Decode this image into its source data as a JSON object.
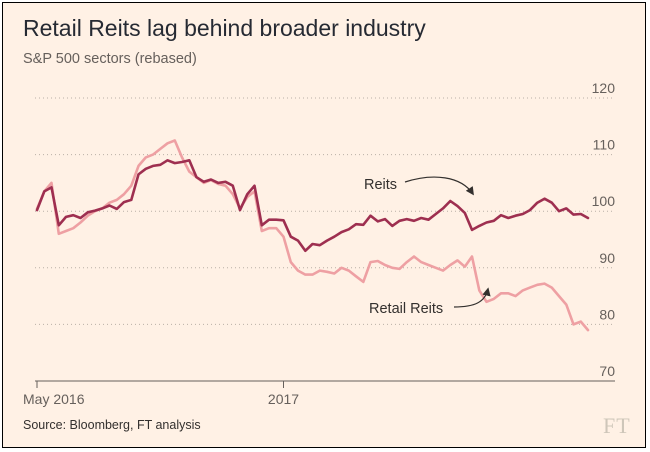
{
  "title": "Retail Reits lag behind broader industry",
  "subtitle": "S&P 500 sectors (rebased)",
  "source": "Source: Bloomberg, FT analysis",
  "logo": "FT",
  "chart_data": {
    "type": "line",
    "title": "Retail Reits lag behind broader industry",
    "subtitle": "S&P 500 sectors (rebased)",
    "xlabel": "",
    "ylabel": "",
    "ylim": [
      70,
      120
    ],
    "xlim": [
      0,
      76
    ],
    "x_unit": "weeks since May 2016 start",
    "x_ticks": [
      {
        "label": "May 2016",
        "x": 0
      },
      {
        "label": "2017",
        "x": 34
      }
    ],
    "y_ticks": [
      70,
      80,
      90,
      100,
      110,
      120
    ],
    "y_tick_labels": [
      "70",
      "80",
      "90",
      "100",
      "110",
      "120"
    ],
    "grid": "horizontal dotted",
    "annotations": [
      {
        "text": "Reits",
        "series": "Reits"
      },
      {
        "text": "Retail Reits",
        "series": "Retail Reits"
      }
    ],
    "series": [
      {
        "name": "Reits",
        "color": "#9e2f50",
        "x": [
          0,
          1,
          2,
          3,
          4,
          5,
          6,
          7,
          8,
          9,
          10,
          11,
          12,
          13,
          14,
          15,
          16,
          17,
          18,
          19,
          20,
          21,
          22,
          23,
          24,
          25,
          26,
          27,
          28,
          29,
          30,
          31,
          32,
          33,
          34,
          35,
          36,
          37,
          38,
          39,
          40,
          41,
          42,
          43,
          44,
          45,
          46,
          47,
          48,
          49,
          50,
          51,
          52,
          53,
          54,
          55,
          56,
          57,
          58,
          59,
          60,
          61,
          62,
          63,
          64,
          65,
          66,
          67,
          68,
          69,
          70,
          71,
          72,
          73,
          74,
          75,
          76
        ],
        "values": [
          100.2,
          103.5,
          104.2,
          97.5,
          99,
          99.3,
          98.8,
          99.8,
          100.1,
          100.5,
          101,
          100.4,
          101.6,
          102,
          106.5,
          107.5,
          108,
          108.2,
          109,
          108.5,
          108.7,
          109,
          106,
          105.2,
          105.6,
          105,
          105.2,
          104.5,
          100.2,
          103,
          104.5,
          97.5,
          98.5,
          98.5,
          98.4,
          95.5,
          94.8,
          93,
          94.2,
          94,
          94.8,
          95.5,
          96.3,
          96.8,
          97.7,
          97.6,
          99.2,
          98.2,
          98.6,
          97.4,
          98.3,
          98.6,
          98.3,
          98.8,
          98.5,
          99.5,
          100.5,
          101.8,
          100.9,
          99.7,
          96.7,
          97.4,
          98,
          98.3,
          99.3,
          98.8,
          99.2,
          99.5,
          100.2,
          101.5,
          102.2,
          101.5,
          100,
          100.5,
          99.4,
          99.5,
          98.8
        ]
      },
      {
        "name": "Retail Reits",
        "color": "#eea0a3",
        "x": [
          0,
          1,
          2,
          3,
          4,
          5,
          6,
          7,
          8,
          9,
          10,
          11,
          12,
          13,
          14,
          15,
          16,
          17,
          18,
          19,
          20,
          21,
          22,
          23,
          24,
          25,
          26,
          27,
          28,
          29,
          30,
          31,
          32,
          33,
          34,
          35,
          36,
          37,
          38,
          39,
          40,
          41,
          42,
          43,
          44,
          45,
          46,
          47,
          48,
          49,
          50,
          51,
          52,
          53,
          54,
          55,
          56,
          57,
          58,
          59,
          60,
          61,
          62,
          63,
          64,
          65,
          66,
          67,
          68,
          69,
          70,
          71,
          72,
          73,
          74,
          75,
          76
        ],
        "values": [
          100.4,
          103.5,
          105,
          96,
          96.5,
          97,
          98,
          99.2,
          100,
          100.5,
          101.5,
          102,
          103,
          104.5,
          108,
          109.5,
          110,
          111,
          112,
          112.5,
          109.5,
          107,
          106,
          105,
          105.5,
          104.8,
          104.5,
          103,
          100.5,
          102.5,
          103.5,
          96.5,
          97,
          97,
          95.5,
          91,
          89.5,
          88.8,
          88.8,
          89.5,
          89.3,
          89,
          90,
          89.5,
          88.5,
          87.5,
          91,
          91.2,
          90.5,
          90,
          89.8,
          91,
          92,
          91,
          90.5,
          90,
          89.5,
          90.5,
          91.3,
          90.2,
          92,
          86,
          84,
          84.5,
          85.5,
          85.5,
          85,
          86,
          86.5,
          87,
          87.2,
          86.5,
          85,
          83.5,
          80,
          80.5,
          79
        ]
      }
    ]
  }
}
